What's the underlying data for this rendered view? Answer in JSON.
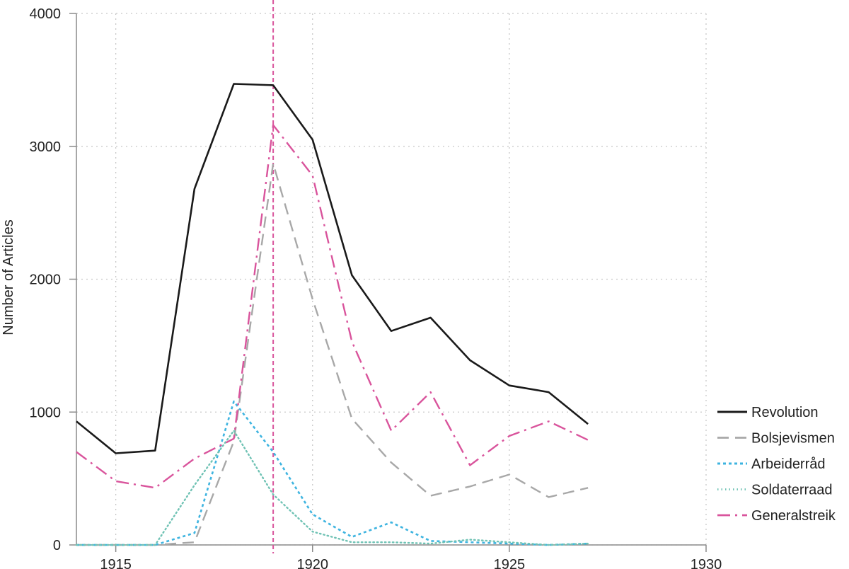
{
  "chart_data": {
    "type": "line",
    "title": "",
    "xlabel": "",
    "ylabel": "Number of Articles",
    "xlim": [
      1914,
      1930
    ],
    "ylim": [
      0,
      4000
    ],
    "x_ticks": [
      1915,
      1920,
      1925,
      1930
    ],
    "y_ticks": [
      0,
      1000,
      2000,
      3000,
      4000
    ],
    "grid": true,
    "legend_position": "right",
    "reference_line": {
      "x": 1919,
      "color": "#d9549c"
    },
    "x": [
      1914,
      1915,
      1916,
      1917,
      1918,
      1919,
      1920,
      1921,
      1922,
      1923,
      1924,
      1925,
      1926,
      1927
    ],
    "series": [
      {
        "name": "Revolution",
        "color": "#1a1a1a",
        "dash": "solid",
        "values": [
          930,
          690,
          710,
          2680,
          3470,
          3460,
          3050,
          2030,
          1610,
          1710,
          1390,
          1200,
          1150,
          910
        ]
      },
      {
        "name": "Bolsjevismen",
        "color": "#a8a8a8",
        "dash": "dashed",
        "values": [
          0,
          0,
          0,
          20,
          780,
          2870,
          1850,
          950,
          620,
          370,
          440,
          530,
          360,
          430
        ]
      },
      {
        "name": "Arbeiderråd",
        "color": "#3eb4e0",
        "dash": "dotted",
        "values": [
          0,
          0,
          0,
          90,
          1080,
          700,
          230,
          60,
          170,
          30,
          20,
          10,
          0,
          10
        ]
      },
      {
        "name": "Soldaterraad",
        "color": "#6fc2b4",
        "dash": "fine-dotted",
        "values": [
          0,
          0,
          0,
          450,
          860,
          380,
          100,
          20,
          20,
          10,
          40,
          20,
          0,
          10
        ]
      },
      {
        "name": "Generalstreik",
        "color": "#d9549c",
        "dash": "dashdot",
        "values": [
          700,
          480,
          430,
          650,
          800,
          3160,
          2780,
          1530,
          860,
          1150,
          600,
          820,
          930,
          790
        ]
      }
    ]
  }
}
